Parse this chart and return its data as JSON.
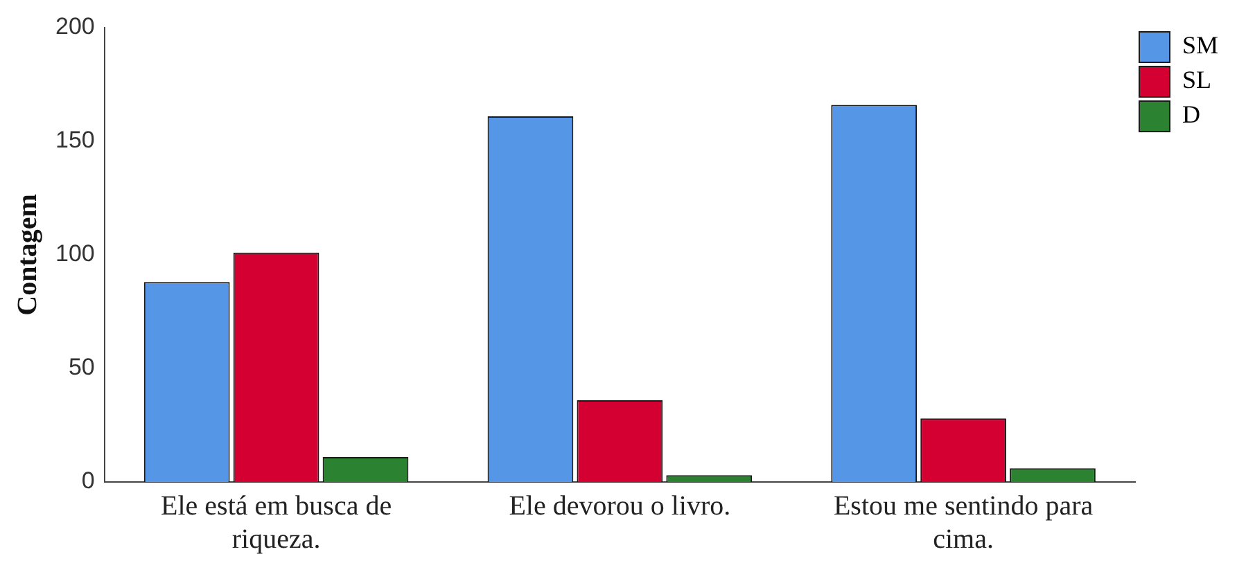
{
  "chart_data": {
    "type": "bar",
    "ylabel": "Contagem",
    "categories": [
      "Ele está em busca de riqueza.",
      "Ele devorou o livro.",
      "Estou me sentindo para cima."
    ],
    "series": [
      {
        "name": "SM",
        "color": "#5596e6",
        "values": [
          88,
          161,
          166
        ]
      },
      {
        "name": "SL",
        "color": "#d50032",
        "values": [
          101,
          36,
          28
        ]
      },
      {
        "name": "D",
        "color": "#2b8230",
        "values": [
          11,
          3,
          6
        ]
      }
    ],
    "ylim": [
      0,
      200
    ],
    "yticks": [
      0,
      50,
      100,
      150,
      200
    ],
    "grid": false,
    "legend": "right"
  }
}
